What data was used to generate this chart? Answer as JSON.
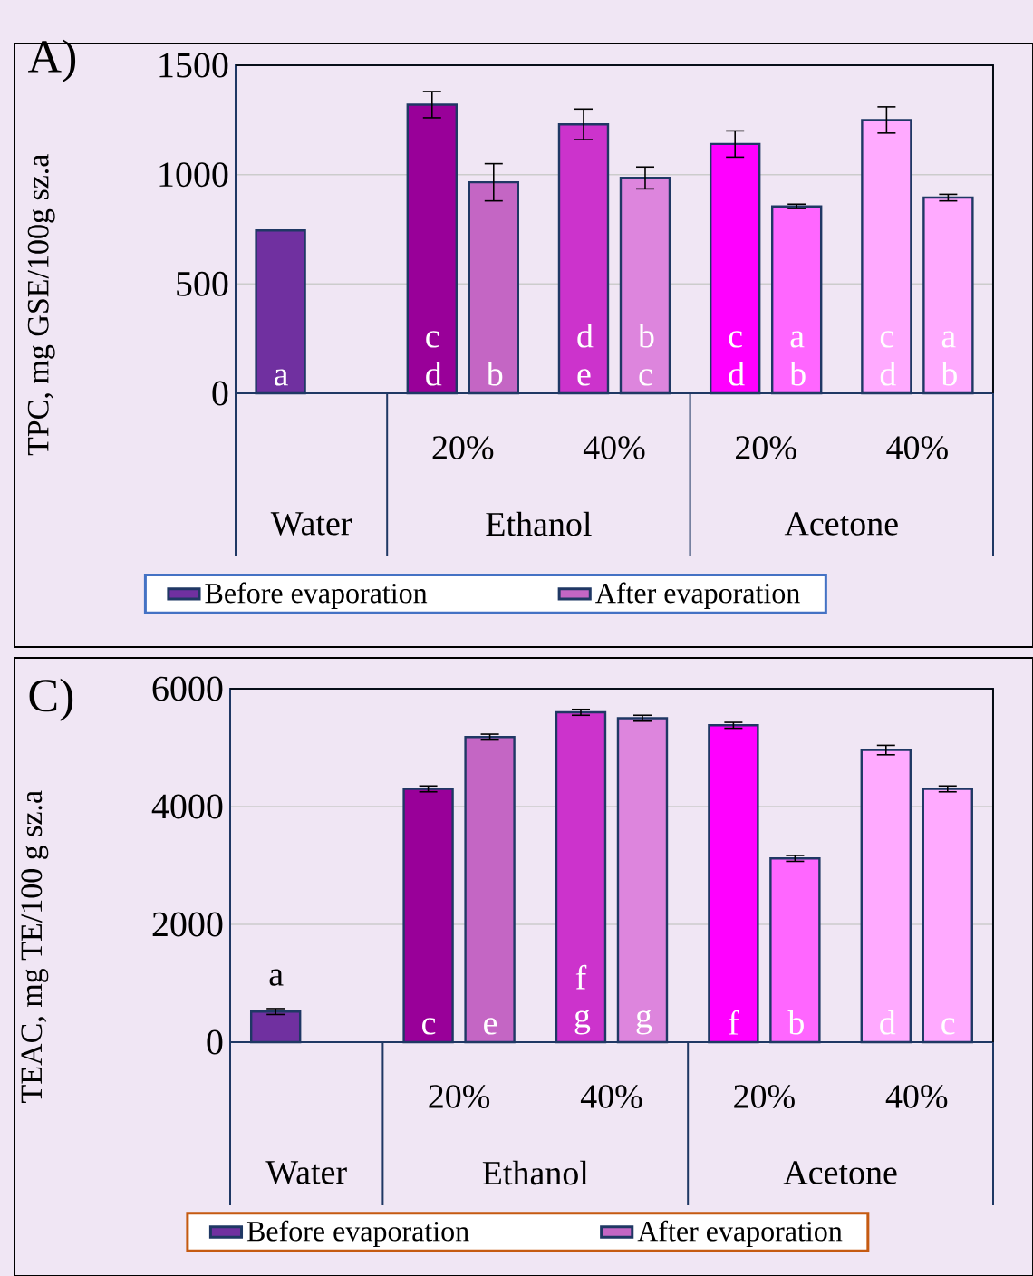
{
  "chart_data": [
    {
      "type": "bar",
      "title": "A)",
      "ylabel": "TPC, mg GSE/100g sz.a",
      "categories": [
        null,
        "20%",
        "40%",
        "20%",
        "40%"
      ],
      "annotations": [
        "Water",
        "Ethanol",
        "Acetone"
      ],
      "ylim": [
        0,
        1500
      ],
      "yticks": [
        0,
        500,
        1000,
        1500
      ],
      "grid": "y",
      "legend": "bottom",
      "series": [
        {
          "name": "Before evaporation",
          "color": "#7030a0",
          "colors": [
            "#7030a0",
            "#990099",
            "#cc33cc",
            "#ff00ff",
            "#ffaaff"
          ],
          "values": [
            745,
            1320,
            1230,
            1140,
            1250
          ],
          "errors": [
            null,
            60,
            70,
            60,
            60
          ],
          "value_labels": [
            "a",
            "c d",
            "d e",
            "c d",
            "c d"
          ]
        },
        {
          "name": "After evaporation",
          "color": "#c466c4",
          "colors": [
            null,
            "#c466c4",
            "#dd85dd",
            "#ff66ff",
            "#ffaaff"
          ],
          "values": [
            null,
            965,
            985,
            855,
            895
          ],
          "errors": [
            null,
            85,
            50,
            10,
            15
          ],
          "value_labels": [
            null,
            "b",
            "b c",
            "a b",
            "a b"
          ]
        }
      ]
    },
    {
      "type": "bar",
      "title": "C)",
      "ylabel": "TEAC, mg TE/100 g sz.a",
      "categories": [
        null,
        "20%",
        "40%",
        "20%",
        "40%"
      ],
      "annotations": [
        "Water",
        "Ethanol",
        "Acetone"
      ],
      "ylim": [
        0,
        6000
      ],
      "yticks": [
        0,
        2000,
        4000,
        6000
      ],
      "grid": "y",
      "legend": "bottom",
      "series": [
        {
          "name": "Before evaporation",
          "color": "#7030a0",
          "colors": [
            "#7030a0",
            "#990099",
            "#cc33cc",
            "#ff00ff",
            "#ffaaff"
          ],
          "values": [
            520,
            4300,
            5600,
            5380,
            4960
          ],
          "errors": [
            50,
            50,
            50,
            50,
            80
          ],
          "value_labels": [
            "a",
            "c",
            "f g",
            "f",
            "d"
          ]
        },
        {
          "name": "After evaporation",
          "color": "#c466c4",
          "colors": [
            null,
            "#c466c4",
            "#dd85dd",
            "#ff66ff",
            "#ffaaff"
          ],
          "values": [
            null,
            5180,
            5500,
            3120,
            4300
          ],
          "errors": [
            null,
            50,
            50,
            50,
            50
          ],
          "value_labels": [
            null,
            "e",
            "g",
            "b",
            "c"
          ]
        }
      ]
    }
  ]
}
